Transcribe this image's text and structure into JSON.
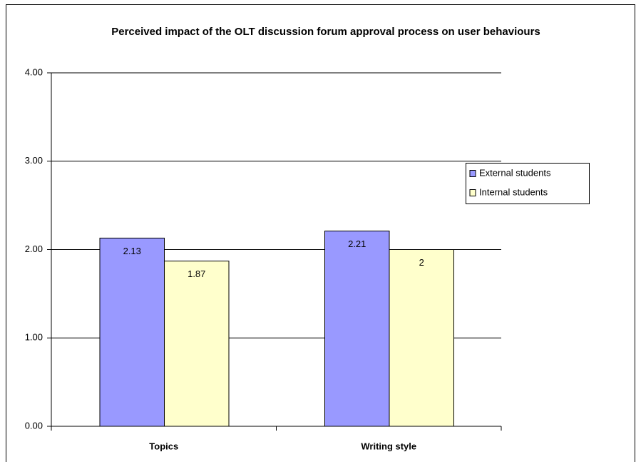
{
  "chart_data": {
    "type": "bar",
    "title": "Perceived impact of the OLT discussion forum approval process on user behaviours",
    "categories": [
      "Topics",
      "Writing style"
    ],
    "series": [
      {
        "name": "External students",
        "color": "#9999ff",
        "values": [
          2.13,
          2.21
        ]
      },
      {
        "name": "Internal students",
        "color": "#ffffcc",
        "values": [
          1.87,
          2
        ]
      }
    ],
    "ylim": [
      0,
      4
    ],
    "yticks": [
      {
        "value": 0,
        "label": "0.00"
      },
      {
        "value": 1,
        "label": "1.00"
      },
      {
        "value": 2,
        "label": "2.00"
      },
      {
        "value": 3,
        "label": "3.00"
      },
      {
        "value": 4,
        "label": "4.00"
      }
    ],
    "grid": true,
    "legend": "right"
  }
}
